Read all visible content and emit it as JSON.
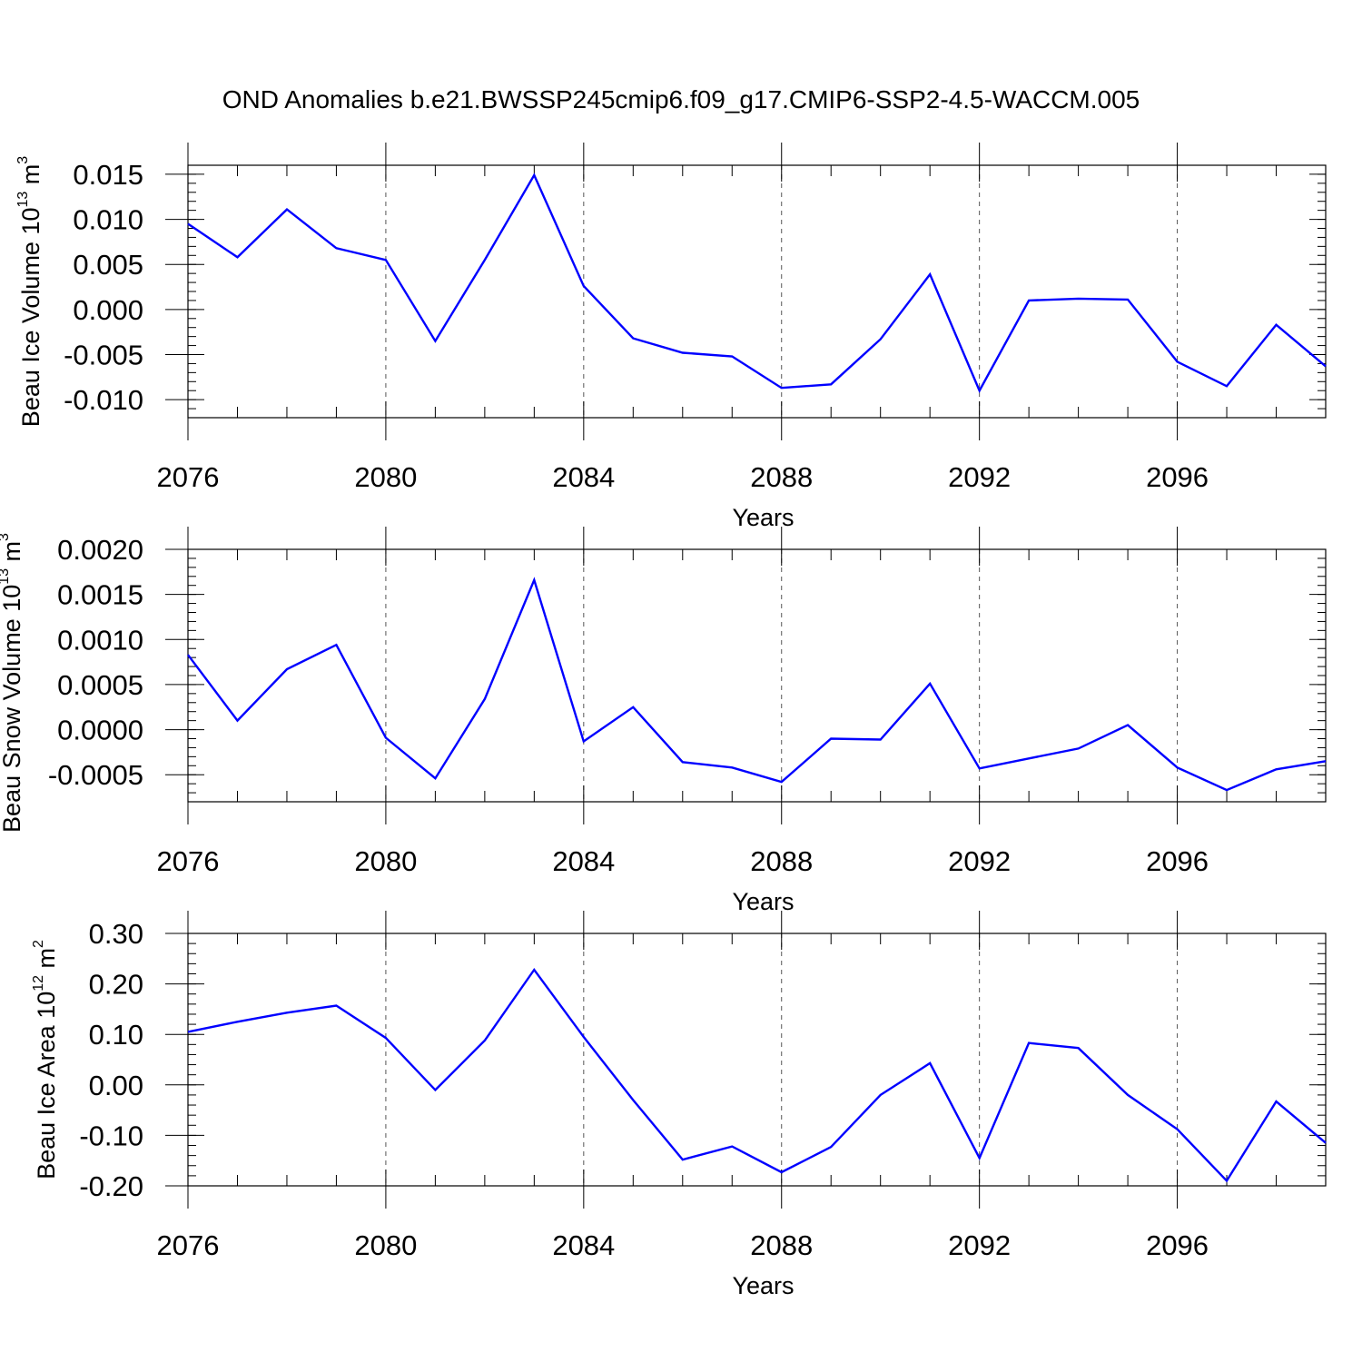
{
  "title": "OND Anomalies b.e21.BWSSP245cmip6.f09_g17.CMIP6-SSP2-4.5-WACCM.005",
  "colors": {
    "line": "#0000ff",
    "axis": "#000000",
    "grid": "#555555"
  },
  "chart_data": [
    {
      "type": "line",
      "title": "",
      "ylabel": "Beau Ice Volume 10",
      "ylabel_sup1": "13",
      "ylabel_mid": " m",
      "ylabel_sup2": "3",
      "xlabel": "Years",
      "xlim": [
        2076,
        2099
      ],
      "ylim": [
        -0.012,
        0.016
      ],
      "yticks": [
        -0.01,
        -0.005,
        0.0,
        0.005,
        0.01,
        0.015
      ],
      "ytick_labels": [
        "-0.010",
        "-0.005",
        "0.000",
        "0.005",
        "0.010",
        "0.015"
      ],
      "yminor_step": 0.001,
      "xticks": [
        2076,
        2080,
        2084,
        2088,
        2092,
        2096
      ],
      "xtick_labels": [
        "2076",
        "2080",
        "2084",
        "2088",
        "2092",
        "2096"
      ],
      "grid_x": [
        2080,
        2084,
        2088,
        2092,
        2096
      ],
      "x": [
        2076,
        2077,
        2078,
        2079,
        2080,
        2081,
        2082,
        2083,
        2084,
        2085,
        2086,
        2087,
        2088,
        2089,
        2090,
        2091,
        2092,
        2093,
        2094,
        2095,
        2096,
        2097,
        2098,
        2099
      ],
      "series": [
        {
          "name": "Beau Ice Volume",
          "values": [
            0.0095,
            0.0058,
            0.0111,
            0.0068,
            0.0055,
            -0.0035,
            0.0055,
            0.0149,
            0.0026,
            -0.0032,
            -0.0048,
            -0.0052,
            -0.0087,
            -0.0083,
            -0.0033,
            0.0039,
            -0.009,
            0.001,
            0.0012,
            0.0011,
            -0.0058,
            -0.0085,
            -0.0017,
            -0.0063
          ]
        }
      ]
    },
    {
      "type": "line",
      "title": "",
      "ylabel": "Beau Snow Volume 10",
      "ylabel_sup1": "13",
      "ylabel_mid": " m",
      "ylabel_sup2": "3",
      "xlabel": "Years",
      "xlim": [
        2076,
        2099
      ],
      "ylim": [
        -0.0008,
        0.002
      ],
      "yticks": [
        -0.0005,
        0.0,
        0.0005,
        0.001,
        0.0015,
        0.002
      ],
      "ytick_labels": [
        "-0.0005",
        "0.0000",
        "0.0005",
        "0.0010",
        "0.0015",
        "0.0020"
      ],
      "yminor_step": 0.0001,
      "xticks": [
        2076,
        2080,
        2084,
        2088,
        2092,
        2096
      ],
      "xtick_labels": [
        "2076",
        "2080",
        "2084",
        "2088",
        "2092",
        "2096"
      ],
      "grid_x": [
        2080,
        2084,
        2088,
        2092,
        2096
      ],
      "x": [
        2076,
        2077,
        2078,
        2079,
        2080,
        2081,
        2082,
        2083,
        2084,
        2085,
        2086,
        2087,
        2088,
        2089,
        2090,
        2091,
        2092,
        2093,
        2094,
        2095,
        2096,
        2097,
        2098,
        2099
      ],
      "series": [
        {
          "name": "Beau Snow Volume",
          "values": [
            0.00083,
            0.0001,
            0.00067,
            0.00094,
            -9e-05,
            -0.00054,
            0.00034,
            0.00166,
            -0.00013,
            0.00025,
            -0.00036,
            -0.00042,
            -0.00058,
            -0.0001,
            -0.00011,
            0.00051,
            -0.00043,
            -0.00032,
            -0.00021,
            5e-05,
            -0.00042,
            -0.00067,
            -0.00044,
            -0.00035
          ]
        }
      ]
    },
    {
      "type": "line",
      "title": "",
      "ylabel": "Beau Ice Area 10",
      "ylabel_sup1": "12",
      "ylabel_mid": " m",
      "ylabel_sup2": "2",
      "xlabel": "Years",
      "xlim": [
        2076,
        2099
      ],
      "ylim": [
        -0.2,
        0.3
      ],
      "yticks": [
        -0.2,
        -0.1,
        0.0,
        0.1,
        0.2,
        0.3
      ],
      "ytick_labels": [
        "-0.20",
        "-0.10",
        "0.00",
        "0.10",
        "0.20",
        "0.30"
      ],
      "yminor_step": 0.02,
      "xticks": [
        2076,
        2080,
        2084,
        2088,
        2092,
        2096
      ],
      "xtick_labels": [
        "2076",
        "2080",
        "2084",
        "2088",
        "2092",
        "2096"
      ],
      "grid_x": [
        2080,
        2084,
        2088,
        2092,
        2096
      ],
      "x": [
        2076,
        2077,
        2078,
        2079,
        2080,
        2081,
        2082,
        2083,
        2084,
        2085,
        2086,
        2087,
        2088,
        2089,
        2090,
        2091,
        2092,
        2093,
        2094,
        2095,
        2096,
        2097,
        2098,
        2099
      ],
      "series": [
        {
          "name": "Beau Ice Area",
          "values": [
            0.105,
            0.125,
            0.143,
            0.157,
            0.093,
            -0.01,
            0.088,
            0.228,
            0.095,
            -0.03,
            -0.148,
            -0.122,
            -0.173,
            -0.123,
            -0.02,
            0.043,
            -0.145,
            0.083,
            0.073,
            -0.02,
            -0.088,
            -0.19,
            -0.033,
            -0.115
          ]
        }
      ]
    }
  ]
}
